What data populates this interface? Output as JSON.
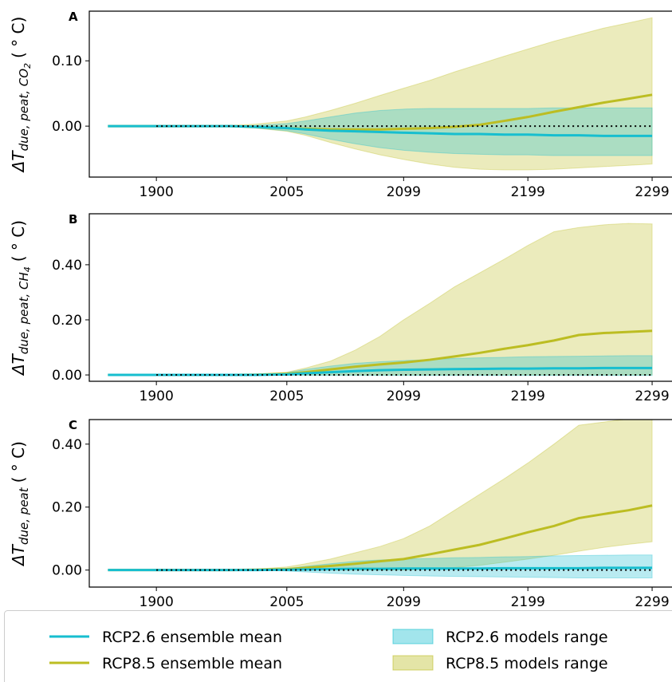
{
  "chart_data": [
    {
      "type": "line",
      "panel_label": "A",
      "ylabel": {
        "main": "ΔT",
        "sub": "due, peat, CO",
        "subsub": "2",
        "unit": "( ° C)"
      },
      "x": [
        1861,
        1880,
        1900,
        1920,
        1940,
        1960,
        1980,
        2005,
        2020,
        2040,
        2060,
        2080,
        2099,
        2120,
        2140,
        2160,
        2180,
        2199,
        2220,
        2240,
        2260,
        2280,
        2299
      ],
      "xlim": [
        1846,
        2315
      ],
      "xticks": [
        1900,
        2005,
        2099,
        2199,
        2299
      ],
      "ylim": [
        -0.078,
        0.176
      ],
      "yticks": [
        {
          "value": 0,
          "label": "0.00"
        },
        {
          "value": 0.1,
          "label": "0.10"
        }
      ],
      "zero_line": 0,
      "series": [
        {
          "name": "RCP2.6 ensemble mean",
          "color": "#17becf",
          "values": [
            0,
            0,
            0,
            0,
            0,
            0,
            -0.001,
            -0.003,
            -0.005,
            -0.007,
            -0.008,
            -0.009,
            -0.01,
            -0.011,
            -0.012,
            -0.012,
            -0.013,
            -0.013,
            -0.014,
            -0.014,
            -0.015,
            -0.015,
            -0.015
          ]
        },
        {
          "name": "RCP8.5 ensemble mean",
          "color": "#bcbd22",
          "values": [
            0,
            0,
            0,
            0,
            0,
            0,
            -0.001,
            -0.003,
            -0.004,
            -0.005,
            -0.005,
            -0.005,
            -0.004,
            -0.003,
            -0.001,
            0.002,
            0.008,
            0.014,
            0.022,
            0.029,
            0.036,
            0.042,
            0.048
          ]
        },
        {
          "name": "RCP2.6 models range",
          "color": "#17becf",
          "low": [
            0,
            0,
            0,
            0,
            0,
            -0.001,
            -0.003,
            -0.007,
            -0.012,
            -0.02,
            -0.027,
            -0.033,
            -0.037,
            -0.04,
            -0.042,
            -0.043,
            -0.044,
            -0.044,
            -0.045,
            -0.045,
            -0.045,
            -0.045,
            -0.045
          ],
          "high": [
            0,
            0,
            0,
            0,
            0,
            0,
            0.001,
            0.004,
            0.008,
            0.014,
            0.02,
            0.024,
            0.026,
            0.027,
            0.027,
            0.027,
            0.027,
            0.027,
            0.028,
            0.028,
            0.028,
            0.028,
            0.028
          ]
        },
        {
          "name": "RCP8.5 models range",
          "color": "#bcbd22",
          "low": [
            0,
            0,
            0,
            0,
            0,
            -0.001,
            -0.003,
            -0.008,
            -0.014,
            -0.025,
            -0.035,
            -0.044,
            -0.051,
            -0.058,
            -0.063,
            -0.066,
            -0.067,
            -0.067,
            -0.066,
            -0.064,
            -0.062,
            -0.06,
            -0.058
          ],
          "high": [
            0,
            0,
            0,
            0,
            0,
            0.001,
            0.003,
            0.008,
            0.014,
            0.024,
            0.035,
            0.047,
            0.058,
            0.07,
            0.083,
            0.095,
            0.107,
            0.118,
            0.13,
            0.14,
            0.15,
            0.158,
            0.166
          ]
        }
      ]
    },
    {
      "type": "line",
      "panel_label": "B",
      "ylabel": {
        "main": "ΔT",
        "sub": "due, peat, CH",
        "subsub": "4",
        "unit": "( ° C)"
      },
      "x": [
        1861,
        1880,
        1900,
        1920,
        1940,
        1960,
        1980,
        2005,
        2020,
        2040,
        2060,
        2080,
        2099,
        2120,
        2140,
        2160,
        2180,
        2199,
        2220,
        2240,
        2260,
        2280,
        2299
      ],
      "xlim": [
        1846,
        2315
      ],
      "xticks": [
        1900,
        2005,
        2099,
        2199,
        2299
      ],
      "ylim": [
        -0.023,
        0.585
      ],
      "yticks": [
        {
          "value": 0,
          "label": "0.00"
        },
        {
          "value": 0.2,
          "label": "0.20"
        },
        {
          "value": 0.4,
          "label": "0.40"
        }
      ],
      "zero_line": 0,
      "series": [
        {
          "color": "#17becf",
          "values": [
            0,
            0,
            0,
            0,
            0,
            0,
            0,
            0.002,
            0.006,
            0.01,
            0.014,
            0.017,
            0.019,
            0.02,
            0.021,
            0.022,
            0.023,
            0.023,
            0.024,
            0.024,
            0.025,
            0.025,
            0.025
          ]
        },
        {
          "color": "#bcbd22",
          "values": [
            0,
            0,
            0,
            0,
            0,
            0,
            0.001,
            0.004,
            0.01,
            0.02,
            0.03,
            0.038,
            0.045,
            0.055,
            0.067,
            0.08,
            0.095,
            0.108,
            0.125,
            0.145,
            0.152,
            0.156,
            0.16
          ]
        },
        {
          "color": "#17becf",
          "low": [
            0,
            0,
            0,
            0,
            0,
            0,
            0,
            -0.002,
            -0.002,
            -0.002,
            -0.002,
            -0.002,
            -0.002,
            -0.002,
            -0.002,
            -0.002,
            -0.002,
            -0.002,
            -0.002,
            -0.002,
            -0.002,
            -0.002,
            -0.002
          ],
          "high": [
            0,
            0,
            0,
            0,
            0,
            0,
            0.001,
            0.008,
            0.02,
            0.032,
            0.042,
            0.048,
            0.052,
            0.056,
            0.06,
            0.062,
            0.064,
            0.066,
            0.067,
            0.068,
            0.069,
            0.07,
            0.07
          ]
        },
        {
          "color": "#bcbd22",
          "low": [
            0,
            0,
            0,
            0,
            0,
            0,
            0,
            0,
            0,
            0,
            0,
            0,
            0,
            0,
            0,
            0,
            0,
            0,
            0,
            0,
            0,
            0,
            0
          ],
          "high": [
            0,
            0,
            0,
            0,
            0,
            0.001,
            0.003,
            0.01,
            0.025,
            0.05,
            0.09,
            0.14,
            0.2,
            0.26,
            0.32,
            0.37,
            0.42,
            0.47,
            0.52,
            0.535,
            0.545,
            0.55,
            0.548
          ]
        }
      ]
    },
    {
      "type": "line",
      "panel_label": "C",
      "ylabel": {
        "main": "ΔT",
        "sub": "due, peat",
        "unit": "( ° C)"
      },
      "x": [
        1861,
        1880,
        1900,
        1920,
        1940,
        1960,
        1980,
        2005,
        2020,
        2040,
        2060,
        2080,
        2099,
        2120,
        2140,
        2160,
        2180,
        2199,
        2220,
        2240,
        2260,
        2280,
        2299
      ],
      "xlim": [
        1846,
        2315
      ],
      "xticks": [
        1900,
        2005,
        2099,
        2199,
        2299
      ],
      "ylim": [
        -0.054,
        0.478
      ],
      "yticks": [
        {
          "value": 0,
          "label": "0.00"
        },
        {
          "value": 0.2,
          "label": "0.20"
        },
        {
          "value": 0.4,
          "label": "0.40"
        }
      ],
      "zero_line": 0,
      "series": [
        {
          "color": "#17becf",
          "values": [
            0,
            0,
            0,
            0,
            0,
            0,
            0,
            0.001,
            0.002,
            0.003,
            0.004,
            0.004,
            0.005,
            0.005,
            0.005,
            0.005,
            0.006,
            0.006,
            0.006,
            0.006,
            0.007,
            0.007,
            0.007
          ]
        },
        {
          "color": "#bcbd22",
          "values": [
            0,
            0,
            0,
            0,
            0,
            0,
            0.001,
            0.003,
            0.007,
            0.013,
            0.02,
            0.028,
            0.035,
            0.05,
            0.065,
            0.08,
            0.1,
            0.12,
            0.14,
            0.165,
            0.178,
            0.19,
            0.205
          ]
        },
        {
          "color": "#17becf",
          "low": [
            0,
            0,
            0,
            0,
            0,
            0,
            0,
            -0.003,
            -0.006,
            -0.01,
            -0.013,
            -0.015,
            -0.017,
            -0.019,
            -0.02,
            -0.021,
            -0.022,
            -0.023,
            -0.024,
            -0.025,
            -0.025,
            -0.025,
            -0.025
          ],
          "high": [
            0,
            0,
            0,
            0,
            0,
            0,
            0.001,
            0.005,
            0.012,
            0.02,
            0.028,
            0.032,
            0.035,
            0.037,
            0.039,
            0.04,
            0.042,
            0.043,
            0.045,
            0.046,
            0.047,
            0.048,
            0.048
          ]
        },
        {
          "color": "#bcbd22",
          "low": [
            0,
            0,
            0,
            0,
            0,
            0,
            0,
            0,
            0,
            0,
            0,
            0,
            0,
            0.003,
            0.008,
            0.015,
            0.025,
            0.035,
            0.047,
            0.06,
            0.072,
            0.082,
            0.09
          ],
          "high": [
            0,
            0,
            0,
            0,
            0,
            0.001,
            0.003,
            0.01,
            0.02,
            0.035,
            0.055,
            0.075,
            0.1,
            0.14,
            0.19,
            0.24,
            0.29,
            0.34,
            0.4,
            0.46,
            0.47,
            0.48,
            0.48
          ]
        }
      ]
    }
  ]
}
